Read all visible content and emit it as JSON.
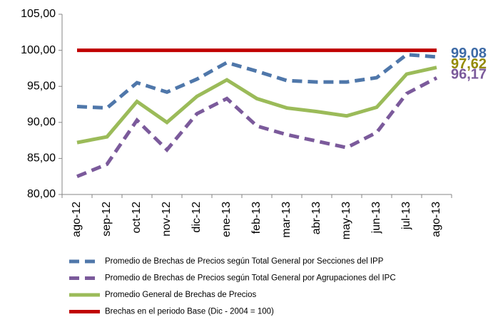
{
  "chart_data": {
    "type": "line",
    "categories": [
      "ago-12",
      "sep-12",
      "oct-12",
      "nov-12",
      "dic-12",
      "ene-13",
      "feb-13",
      "mar-13",
      "abr-13",
      "may-13",
      "jun-13",
      "jul-13",
      "ago-13"
    ],
    "ylim": [
      80,
      105
    ],
    "yticks": [
      {
        "value": 80,
        "label": "80,00"
      },
      {
        "value": 85,
        "label": "85,00"
      },
      {
        "value": 90,
        "label": "90,00"
      },
      {
        "value": 95,
        "label": "95,00"
      },
      {
        "value": 100,
        "label": "100,00"
      },
      {
        "value": 105,
        "label": "105,00"
      }
    ],
    "grid": false,
    "legend": "bottom",
    "series": [
      {
        "name": "Promedio de Brechas de Precios según Total General por Secciones del IPP",
        "color": "#4f77aa",
        "dash": true,
        "label_color": "#3d6aa6",
        "values": [
          92.2,
          92.0,
          95.5,
          94.2,
          96.0,
          98.3,
          97.1,
          95.8,
          95.6,
          95.6,
          96.2,
          99.4,
          99.08
        ],
        "value_labels": [
          null,
          null,
          null,
          null,
          null,
          null,
          null,
          null,
          null,
          null,
          null,
          null,
          "99,08"
        ]
      },
      {
        "name": "Promedio de Brechas de Precios según Total General por Agrupaciones del IPC",
        "color": "#7b5a9b",
        "dash": true,
        "label_color": "#7b5a9b",
        "values": [
          82.5,
          84.2,
          90.3,
          86.2,
          91.2,
          93.3,
          89.5,
          88.3,
          87.4,
          86.5,
          88.6,
          94.0,
          96.17
        ],
        "value_labels": [
          null,
          null,
          null,
          null,
          null,
          null,
          null,
          null,
          null,
          null,
          null,
          null,
          "96,17"
        ]
      },
      {
        "name": "Promedio General de Brechas de Precios",
        "color": "#9bbb59",
        "dash": false,
        "label_color": "#948a00",
        "values": [
          87.2,
          88.0,
          92.9,
          90.0,
          93.6,
          95.9,
          93.3,
          92.0,
          91.5,
          90.9,
          92.1,
          96.7,
          97.62
        ],
        "value_labels": [
          null,
          null,
          null,
          null,
          null,
          null,
          null,
          null,
          null,
          null,
          null,
          null,
          "97,62"
        ]
      },
      {
        "name": "Brechas en el periodo Base (Dic - 2004 = 100)",
        "color": "#c00000",
        "dash": false,
        "values": [
          100,
          100,
          100,
          100,
          100,
          100,
          100,
          100,
          100,
          100,
          100,
          100,
          100
        ]
      }
    ]
  }
}
